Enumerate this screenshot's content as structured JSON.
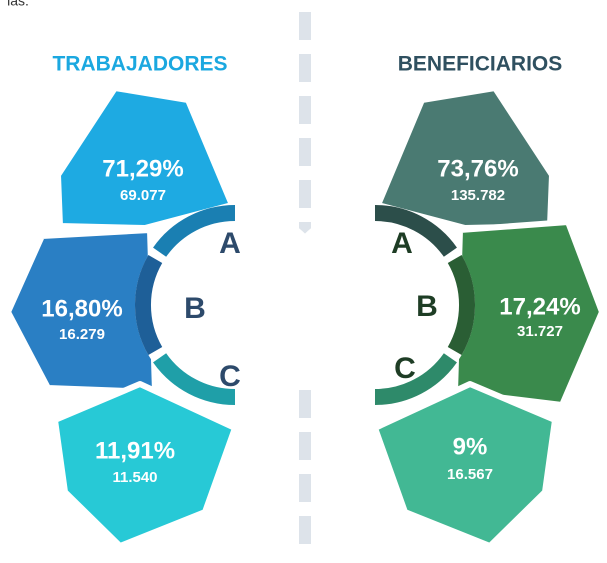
{
  "top_note": "ias.",
  "panels": [
    {
      "title": "TRABAJADORES",
      "items": [
        {
          "letter": "A",
          "percent": "71,29%",
          "count": "69.077"
        },
        {
          "letter": "B",
          "percent": "16,80%",
          "count": "16.279"
        },
        {
          "letter": "C",
          "percent": "11,91%",
          "count": "11.540"
        }
      ]
    },
    {
      "title": "BENEFICIARIOS",
      "items": [
        {
          "letter": "A",
          "percent": "73,76%",
          "count": "135.782"
        },
        {
          "letter": "B",
          "percent": "17,24%",
          "count": "31.727"
        },
        {
          "letter": "C",
          "percent": "9%",
          "count": "16.567"
        }
      ]
    }
  ]
}
